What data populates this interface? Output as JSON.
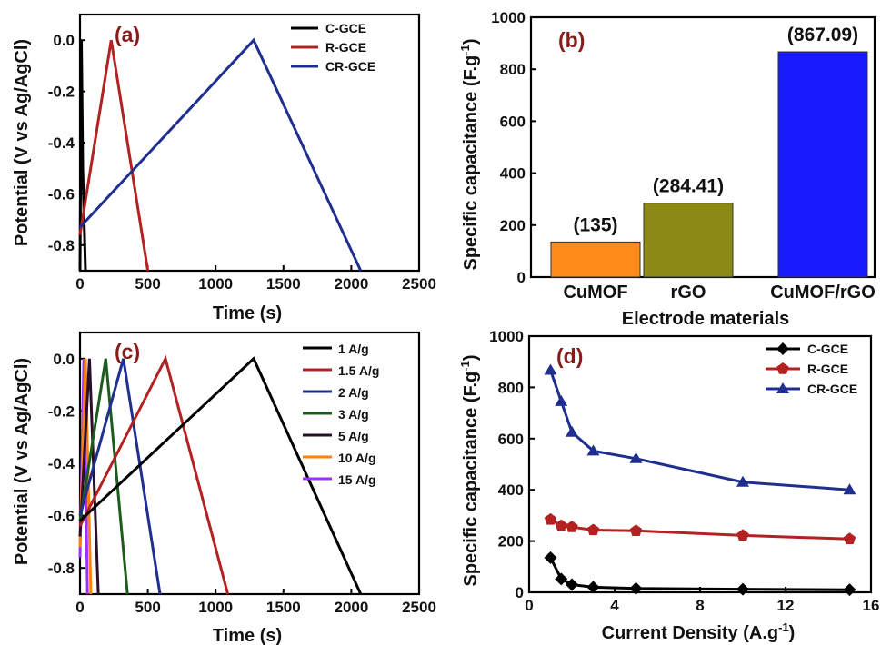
{
  "chart_data": [
    {
      "panel": "(a)",
      "type": "line",
      "xlabel": "Time (s)",
      "ylabel": "Potential (V vs Ag/AgCl)",
      "xlim": [
        0,
        2500
      ],
      "ylim": [
        -0.9,
        0.1
      ],
      "xticks": [
        0,
        500,
        1000,
        1500,
        2000,
        2500
      ],
      "yticks": [
        -0.8,
        -0.6,
        -0.4,
        -0.2,
        0.0
      ],
      "grid": false,
      "legend_position": "top-right",
      "series": [
        {
          "name": "C-GCE",
          "color": "#000000",
          "x": [
            0,
            10,
            20,
            40
          ],
          "y": [
            -0.9,
            0.0,
            -0.5,
            -0.9
          ]
        },
        {
          "name": "R-GCE",
          "color": "#b22222",
          "x": [
            0,
            230,
            500
          ],
          "y": [
            -0.76,
            0.0,
            -0.9
          ]
        },
        {
          "name": "CR-GCE",
          "color": "#1f2f8f",
          "x": [
            0,
            1280,
            2070
          ],
          "y": [
            -0.73,
            0.0,
            -0.9
          ]
        }
      ]
    },
    {
      "panel": "(b)",
      "type": "bar",
      "xlabel": "Electrode materials",
      "ylabel": "Specific capacitance (F.g",
      "ylabel_sup": "-1",
      "ylim": [
        0,
        1000
      ],
      "yticks": [
        0,
        200,
        400,
        600,
        800,
        1000
      ],
      "grid": false,
      "categories": [
        "CuMOF",
        "rGO",
        "CuMOF/rGO"
      ],
      "values": [
        135,
        284.41,
        867.09
      ],
      "data_labels": [
        "(135)",
        "(284.41)",
        "(867.09)"
      ],
      "colors": [
        "#ff8c1a",
        "#8a8a14",
        "#1a1aff"
      ]
    },
    {
      "panel": "(c)",
      "type": "line",
      "xlabel": "Time (s)",
      "ylabel": "Potential (V vs Ag/AgCl)",
      "xlim": [
        0,
        2500
      ],
      "ylim": [
        -0.9,
        0.1
      ],
      "xticks": [
        0,
        500,
        1000,
        1500,
        2000,
        2500
      ],
      "yticks": [
        -0.8,
        -0.6,
        -0.4,
        -0.2,
        0.0
      ],
      "grid": false,
      "legend_position": "top-right",
      "series": [
        {
          "name": "1 A/g",
          "color": "#000000",
          "x": [
            0,
            1280,
            2070
          ],
          "y": [
            -0.62,
            0.0,
            -0.9
          ]
        },
        {
          "name": "1.5 A/g",
          "color": "#b22222",
          "x": [
            0,
            630,
            1090
          ],
          "y": [
            -0.64,
            0.0,
            -0.9
          ]
        },
        {
          "name": "2 A/g",
          "color": "#1f2f8f",
          "x": [
            0,
            320,
            590
          ],
          "y": [
            -0.6,
            0.0,
            -0.9
          ]
        },
        {
          "name": "3 A/g",
          "color": "#1d5c1d",
          "x": [
            0,
            190,
            350
          ],
          "y": [
            -0.62,
            0.0,
            -0.9
          ]
        },
        {
          "name": "5 A/g",
          "color": "#2a0f2a",
          "x": [
            0,
            70,
            135
          ],
          "y": [
            -0.68,
            0.0,
            -0.9
          ]
        },
        {
          "name": "10 A/g",
          "color": "#ff7f0e",
          "x": [
            0,
            40,
            80
          ],
          "y": [
            -0.72,
            0.0,
            -0.9
          ]
        },
        {
          "name": "15 A/g",
          "color": "#9b30ff",
          "x": [
            0,
            28,
            55
          ],
          "y": [
            -0.76,
            0.0,
            -0.9
          ]
        }
      ]
    },
    {
      "panel": "(d)",
      "type": "line",
      "xlabel": "Current Density (A.g",
      "xlabel_sup": "-1",
      "xlabel_end": ")",
      "ylabel": "Specific capacitance (F.g",
      "ylabel_sup": "-1",
      "xlim": [
        0,
        16
      ],
      "ylim": [
        0,
        1000
      ],
      "xticks": [
        0,
        4,
        8,
        12,
        16
      ],
      "yticks": [
        0,
        200,
        400,
        600,
        800,
        1000
      ],
      "grid": false,
      "legend_position": "top-right",
      "x": [
        1,
        1.5,
        2,
        3,
        5,
        10,
        15
      ],
      "series": [
        {
          "name": "C-GCE",
          "color": "#000000",
          "marker": "diamond",
          "values": [
            135,
            52,
            30,
            20,
            15,
            12,
            10
          ]
        },
        {
          "name": "R-GCE",
          "color": "#b22222",
          "marker": "pentagon",
          "values": [
            284,
            260,
            255,
            243,
            240,
            222,
            208
          ]
        },
        {
          "name": "CR-GCE",
          "color": "#1f2f8f",
          "marker": "triangle",
          "values": [
            867,
            745,
            625,
            552,
            522,
            430,
            400
          ]
        }
      ]
    }
  ]
}
